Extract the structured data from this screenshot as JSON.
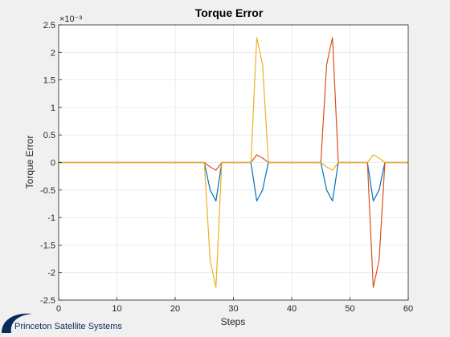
{
  "chart_data": {
    "type": "line",
    "title": "Torque Error",
    "xlabel": "Steps",
    "ylabel": "Torque Error",
    "exponent_label": "×10⁻³",
    "xlim": [
      0,
      60
    ],
    "ylim": [
      -2.5,
      2.5
    ],
    "xticks": [
      0,
      10,
      20,
      30,
      40,
      50,
      60
    ],
    "yticks": [
      -2.5,
      -2,
      -1.5,
      -1,
      -0.5,
      0,
      0.5,
      1,
      1.5,
      2,
      2.5
    ],
    "grid": true,
    "legend": "none",
    "series": [
      {
        "color": "#0072bd",
        "x": [
          0,
          25,
          26,
          27,
          28,
          33,
          34,
          35,
          36,
          45,
          46,
          47,
          48,
          53,
          54,
          55,
          56,
          60
        ],
        "y": [
          0,
          0,
          -0.5,
          -0.7,
          0,
          0,
          -0.7,
          -0.5,
          0,
          0,
          -0.5,
          -0.7,
          0,
          0,
          -0.7,
          -0.5,
          0,
          0
        ]
      },
      {
        "color": "#d95319",
        "x": [
          0,
          25,
          26,
          27,
          28,
          33,
          34,
          35,
          36,
          45,
          46,
          47,
          48,
          53,
          54,
          55,
          56,
          60
        ],
        "y": [
          0,
          0,
          -0.08,
          -0.14,
          0,
          0,
          0.14,
          0.08,
          0,
          0,
          1.78,
          2.27,
          0,
          0,
          -2.27,
          -1.78,
          0,
          0
        ]
      },
      {
        "color": "#edb120",
        "x": [
          0,
          25,
          26,
          27,
          28,
          33,
          34,
          35,
          36,
          45,
          46,
          47,
          48,
          53,
          54,
          55,
          56,
          60
        ],
        "y": [
          0,
          0,
          -1.78,
          -2.27,
          0,
          0,
          2.27,
          1.78,
          0,
          0,
          -0.08,
          -0.14,
          0,
          0,
          0.14,
          0.08,
          0,
          0
        ]
      }
    ]
  },
  "footer": {
    "logo_text": "Princeton Satellite Systems",
    "logo_color": "#0a2a5a"
  }
}
